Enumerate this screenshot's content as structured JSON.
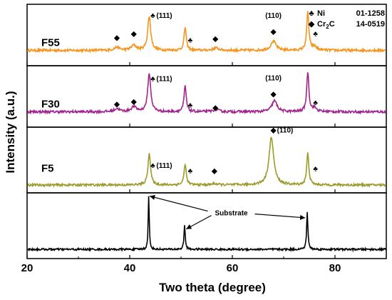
{
  "chart_data": {
    "type": "line",
    "xlabel": "Two theta (degree)",
    "ylabel": "Intensity (a.u.)",
    "xlim": [
      20,
      90
    ],
    "xticks": [
      "20",
      "40",
      "60",
      "80"
    ],
    "legend": {
      "placement": "top-right",
      "entries": [
        {
          "symbol": "♣",
          "label": "Ni",
          "card": "01-1258"
        },
        {
          "symbol": "◆",
          "label": "Cr",
          "sub": "2",
          "label2": "C",
          "card": "14-0519"
        }
      ]
    },
    "panels": [
      {
        "label": "F55",
        "color": "#f7941d",
        "baseline": 0.25,
        "noise": 0.04,
        "peaks": [
          [
            37.5,
            0.05,
            0.6
          ],
          [
            40.8,
            0.08,
            0.6
          ],
          [
            43.8,
            0.55,
            0.35
          ],
          [
            50.8,
            0.38,
            0.25
          ],
          [
            56.8,
            0.04,
            0.6
          ],
          [
            68.0,
            0.15,
            0.6
          ],
          [
            74.7,
            0.62,
            0.25
          ],
          [
            76.0,
            0.06,
            0.5
          ]
        ],
        "annotations": [
          {
            "x": 37.5,
            "y": 0.42,
            "sym": "◆"
          },
          {
            "x": 40.8,
            "y": 0.48,
            "sym": "◆"
          },
          {
            "x": 44.5,
            "y": 0.78,
            "sym": "♣",
            "text": "(111)"
          },
          {
            "x": 51.8,
            "y": 0.38,
            "sym": "♣"
          },
          {
            "x": 56.7,
            "y": 0.4,
            "sym": "◆"
          },
          {
            "x": 68.0,
            "y": 0.52,
            "sym": "◆"
          },
          {
            "x": 68.0,
            "y": 0.78,
            "text": "(110)"
          },
          {
            "x": 76.2,
            "y": 0.48,
            "sym": "♣"
          }
        ]
      },
      {
        "label": "F30",
        "color": "#a3238e",
        "baseline": 0.25,
        "noise": 0.04,
        "peaks": [
          [
            37.5,
            0.05,
            0.6
          ],
          [
            40.8,
            0.08,
            0.6
          ],
          [
            43.8,
            0.62,
            0.35
          ],
          [
            50.8,
            0.42,
            0.25
          ],
          [
            56.8,
            0.04,
            0.6
          ],
          [
            68.2,
            0.18,
            0.6
          ],
          [
            74.7,
            0.65,
            0.25
          ],
          [
            76.0,
            0.06,
            0.5
          ]
        ],
        "annotations": [
          {
            "x": 37.5,
            "y": 0.34,
            "sym": "◆"
          },
          {
            "x": 40.8,
            "y": 0.38,
            "sym": "◆"
          },
          {
            "x": 44.5,
            "y": 0.75,
            "sym": "♣",
            "text": "(111)"
          },
          {
            "x": 51.8,
            "y": 0.32,
            "sym": "♣"
          },
          {
            "x": 56.7,
            "y": 0.28,
            "sym": "◆"
          },
          {
            "x": 68.0,
            "y": 0.5,
            "sym": "◆"
          },
          {
            "x": 68.0,
            "y": 0.76,
            "text": "(110)"
          },
          {
            "x": 76.2,
            "y": 0.36,
            "sym": "♣"
          }
        ]
      },
      {
        "label": "F5",
        "color": "#9b9b2b",
        "baseline": 0.12,
        "noise": 0.035,
        "peaks": [
          [
            43.8,
            0.48,
            0.3
          ],
          [
            50.8,
            0.32,
            0.25
          ],
          [
            56.5,
            0.02,
            0.6
          ],
          [
            67.6,
            0.72,
            0.55
          ],
          [
            74.7,
            0.48,
            0.25
          ]
        ],
        "annotations": [
          {
            "x": 44.5,
            "y": 0.38,
            "sym": "♣",
            "text": "(111)"
          },
          {
            "x": 51.8,
            "y": 0.3,
            "sym": "♣"
          },
          {
            "x": 56.5,
            "y": 0.3,
            "sym": "◆"
          },
          {
            "x": 68.0,
            "y": 0.92,
            "sym": "◆",
            "text": "(110)"
          },
          {
            "x": 76.2,
            "y": 0.33,
            "sym": "♣"
          }
        ]
      },
      {
        "label": "",
        "color": "#000000",
        "baseline": 0.14,
        "noise": 0.03,
        "peaks": [
          [
            43.7,
            0.8,
            0.12
          ],
          [
            50.7,
            0.36,
            0.15
          ],
          [
            74.6,
            0.56,
            0.15
          ]
        ],
        "annotations": [],
        "callout": {
          "text": "Substrate",
          "x": 59.8,
          "y": 0.7,
          "targets": [
            [
              43.9,
              0.95
            ],
            [
              51.0,
              0.45
            ],
            [
              74.2,
              0.62
            ]
          ]
        }
      }
    ]
  }
}
